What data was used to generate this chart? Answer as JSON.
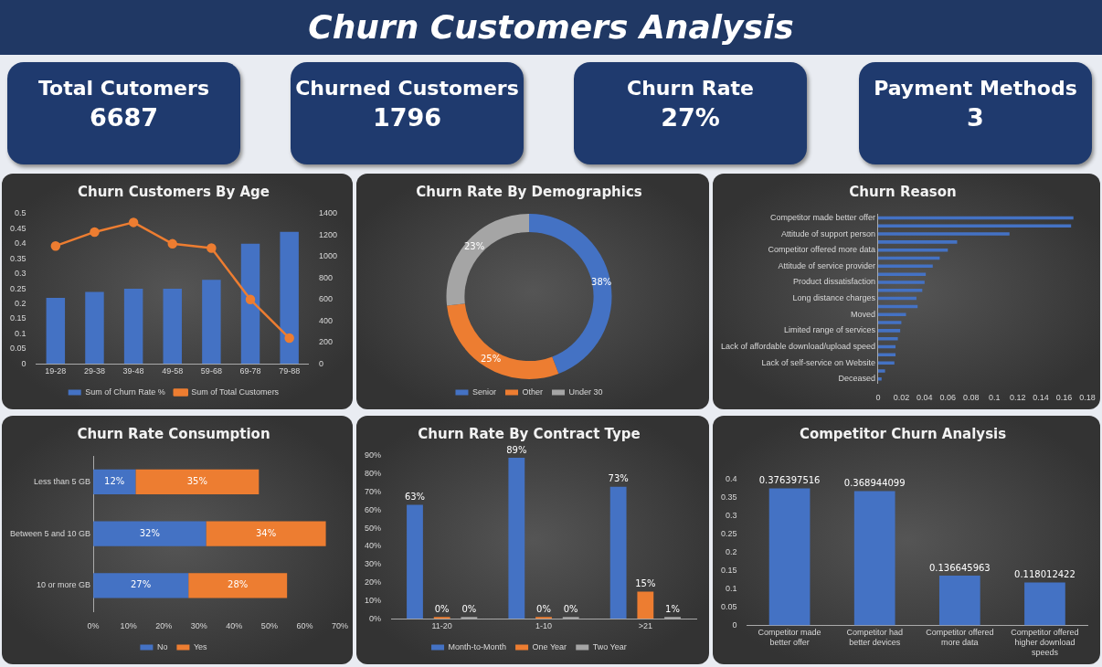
{
  "chart_data": [
    {
      "type": "other",
      "title": "Churn Customers Analysis",
      "categories": [
        "Total Cutomers",
        "Churned Customers",
        "Churn Rate",
        "Payment Methods"
      ],
      "value_labels": [
        "6687",
        "1796",
        "27%",
        "3"
      ]
    },
    {
      "type": "bar",
      "title": "Churn Customers By Age",
      "categories": [
        "19-28",
        "29-38",
        "39-48",
        "49-58",
        "59-68",
        "69-78",
        "79-88"
      ],
      "series": [
        {
          "name": "Sum of Churn Rate %",
          "color": "#4472c4",
          "values": [
            0.22,
            0.24,
            0.25,
            0.25,
            0.28,
            0.4,
            0.44
          ]
        },
        {
          "name": "Sum of Total Customers",
          "type": "line",
          "axis": "y2",
          "color": "#ed7d31",
          "values": [
            1100,
            1230,
            1320,
            1120,
            1080,
            600,
            240
          ]
        }
      ],
      "ylim": [
        0,
        0.5
      ],
      "yticks": [
        0,
        0.05,
        0.1,
        0.15,
        0.2,
        0.25,
        0.3,
        0.35,
        0.4,
        0.45,
        0.5
      ],
      "y2lim": [
        0,
        1400
      ],
      "y2ticks": [
        0,
        200,
        400,
        600,
        800,
        1000,
        1200,
        1400
      ],
      "legend": "bottom",
      "marker": "circle",
      "grid": false
    },
    {
      "type": "donut",
      "title": "Churn Rate By Demographics",
      "categories": [
        "Senior",
        "Other",
        "Under 30"
      ],
      "values": [
        38,
        25,
        23
      ],
      "colors": [
        "#4472c4",
        "#ed7d31",
        "#a5a5a5"
      ],
      "value_labels": [
        "38%",
        "25%",
        "23%"
      ],
      "legend": "bottom"
    },
    {
      "type": "bar",
      "title": "Churn Reason",
      "orientation": "horizontal",
      "categories": [
        "Competitor made better offer",
        null,
        "Attitude of support person",
        null,
        "Competitor offered more data",
        null,
        "Attitude of service provider",
        null,
        "Product dissatisfaction",
        null,
        "Long distance charges",
        null,
        "Moved",
        null,
        "Limited range of services",
        null,
        "Lack of affordable download/upload speed",
        null,
        "Lack of self-service on Website",
        null,
        "Deceased"
      ],
      "values": [
        0.168,
        0.166,
        0.113,
        0.068,
        0.06,
        0.053,
        0.047,
        0.041,
        0.04,
        0.038,
        0.033,
        0.034,
        0.024,
        0.02,
        0.019,
        0.017,
        0.015,
        0.015,
        0.014,
        0.006,
        0.003
      ],
      "color": "#4472c4",
      "xlim": [
        0,
        0.18
      ],
      "xticks": [
        0,
        0.02,
        0.04,
        0.06,
        0.08,
        0.1,
        0.12,
        0.14,
        0.16,
        0.18
      ],
      "grid": false
    },
    {
      "type": "bar",
      "title": "Churn Rate Consumption",
      "orientation": "horizontal",
      "stacked": true,
      "categories": [
        "Less than 5 GB",
        "Between 5 and 10 GB",
        "10 or more GB"
      ],
      "series": [
        {
          "name": "No",
          "color": "#4472c4",
          "values": [
            12,
            32,
            27
          ],
          "value_labels": [
            "12%",
            "32%",
            "27%"
          ]
        },
        {
          "name": "Yes",
          "color": "#ed7d31",
          "values": [
            35,
            34,
            28
          ],
          "value_labels": [
            "35%",
            "34%",
            "28%"
          ]
        }
      ],
      "xlim": [
        0,
        70
      ],
      "xticks": [
        {
          "value": 0,
          "label": "0%"
        },
        {
          "value": 10,
          "label": "10%"
        },
        {
          "value": 20,
          "label": "20%"
        },
        {
          "value": 30,
          "label": "30%"
        },
        {
          "value": 40,
          "label": "40%"
        },
        {
          "value": 50,
          "label": "50%"
        },
        {
          "value": 60,
          "label": "60%"
        },
        {
          "value": 70,
          "label": "70%"
        }
      ],
      "legend": "bottom",
      "grid": false
    },
    {
      "type": "bar",
      "title": "Churn Rate By Contract Type",
      "categories": [
        "11-20",
        "1-10",
        ">21"
      ],
      "series": [
        {
          "name": "Month-to-Month",
          "color": "#4472c4",
          "values": [
            63,
            89,
            73
          ],
          "value_labels": [
            "63%",
            "89%",
            "73%"
          ]
        },
        {
          "name": "One Year",
          "color": "#ed7d31",
          "values": [
            0,
            0,
            15
          ],
          "value_labels": [
            "0%",
            "0%",
            "15%"
          ]
        },
        {
          "name": "Two Year",
          "color": "#a5a5a5",
          "values": [
            0,
            0,
            1
          ],
          "value_labels": [
            "0%",
            "0%",
            "1%"
          ]
        }
      ],
      "ylim": [
        0,
        90
      ],
      "yticks": [
        {
          "value": 0,
          "label": "0%"
        },
        {
          "value": 10,
          "label": "10%"
        },
        {
          "value": 20,
          "label": "20%"
        },
        {
          "value": 30,
          "label": "30%"
        },
        {
          "value": 40,
          "label": "40%"
        },
        {
          "value": 50,
          "label": "50%"
        },
        {
          "value": 60,
          "label": "60%"
        },
        {
          "value": 70,
          "label": "70%"
        },
        {
          "value": 80,
          "label": "80%"
        },
        {
          "value": 90,
          "label": "90%"
        }
      ],
      "legend": "bottom",
      "grid": false
    },
    {
      "type": "bar",
      "title": "Competitor Churn Analysis",
      "categories": [
        "Competitor made better offer",
        "Competitor had better devices",
        "Competitor offered more data",
        "Competitor offered higher download speeds"
      ],
      "values": [
        0.376397516,
        0.368944099,
        0.136645963,
        0.118012422
      ],
      "color": "#4472c4",
      "data_labels": true,
      "ylim": [
        0,
        0.4
      ],
      "yticks": [
        0,
        0.05,
        0.1,
        0.15,
        0.2,
        0.25,
        0.3,
        0.35,
        0.4
      ],
      "grid": false
    }
  ]
}
